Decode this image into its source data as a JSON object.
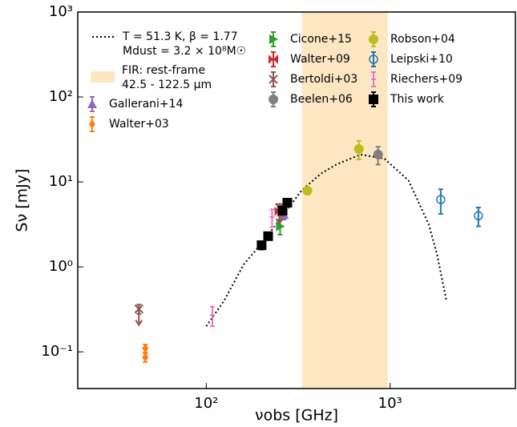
{
  "chart_data": {
    "type": "scatter",
    "x_label": "νobs [GHz]",
    "y_label": "Sν [mJy]",
    "log_x": true,
    "log_y": true,
    "xlim": [
      20,
      4800
    ],
    "ylim": [
      0.037,
      1000
    ],
    "xticks": [
      {
        "value": 100,
        "label": "10²"
      },
      {
        "value": 1000,
        "label": "10³"
      }
    ],
    "yticks": [
      {
        "value": 0.1,
        "label": "10⁻¹"
      },
      {
        "value": 1,
        "label": "10⁰"
      },
      {
        "value": 10,
        "label": "10¹"
      },
      {
        "value": 100,
        "label": "10²"
      },
      {
        "value": 1000,
        "label": "10³"
      }
    ],
    "band": {
      "label_lines": [
        "FIR: rest-frame",
        "42.5 - 122.5 μm"
      ],
      "x_span": [
        331,
        970
      ],
      "color": "#fde7c3"
    },
    "series": [
      {
        "name_lines": [
          "T = 51.3 K, β = 1.77",
          "Mdust = 3.2 × 10⁸M☉"
        ],
        "kind": "line",
        "color": "#000000",
        "x": [
          100,
          125,
          160,
          206,
          260,
          331,
          420,
          509,
          689,
          931,
          1259,
          1622,
          1800,
          2023
        ],
        "y": [
          0.2,
          0.4,
          1.07,
          2.05,
          4,
          8,
          12.5,
          16,
          21,
          18.8,
          10.4,
          3.16,
          1.4,
          0.4
        ]
      },
      {
        "name": "Gallerani+14",
        "marker": "^",
        "color": "#9467bd",
        "x": [
          265
        ],
        "y": [
          4.1
        ],
        "yerr": [
          0.5
        ]
      },
      {
        "name": "Walter+03",
        "marker": "D",
        "color": "#ff7f0e",
        "x": [
          46.6,
          46.6
        ],
        "y": [
          0.11,
          0.086
        ],
        "yerr": [
          0.012,
          0.01
        ]
      },
      {
        "name": "Cicone+15",
        "marker": ">",
        "color": "#2ca02c",
        "x": [
          252
        ],
        "y": [
          3.0
        ],
        "yerr": [
          0.6
        ]
      },
      {
        "name": "Walter+09",
        "marker": "bowtie",
        "color": "#d62728",
        "x": [
          250
        ],
        "y": [
          4.5
        ],
        "yerr": [
          0.5
        ]
      },
      {
        "name": "Bertoldi+03",
        "marker": "x",
        "color": "#8c564b",
        "uplims": true,
        "x": [
          43,
          250
        ],
        "y": [
          0.32,
          5.0
        ],
        "yerr": [
          0.04,
          0.5
        ]
      },
      {
        "name": "Beelen+06",
        "marker": "o",
        "color": "#7f7f7f",
        "x": [
          860
        ],
        "y": [
          21
        ],
        "yerr": [
          5
        ]
      },
      {
        "name": "Robson+04",
        "marker": "o",
        "color": "#bcbd22",
        "x": [
          355,
          676
        ],
        "y": [
          7.9,
          24.4
        ],
        "yerr": [
          0.8,
          6
        ]
      },
      {
        "name": "Leipski+10",
        "marker": "open",
        "color": "#1f77b4",
        "x": [
          1884,
          3020
        ],
        "y": [
          6.2,
          4.0
        ],
        "yerr": [
          2,
          1
        ]
      },
      {
        "name": "Riechers+09",
        "marker": "none",
        "color": "#e377c2",
        "x": [
          108,
          228
        ],
        "y": [
          0.27,
          3.85
        ],
        "yerr": [
          0.07,
          0.9
        ]
      },
      {
        "name": "This work",
        "marker": "s",
        "color": "#000000",
        "x": [
          200,
          217,
          260,
          276
        ],
        "y": [
          1.8,
          2.3,
          4.6,
          5.7
        ],
        "yerr": [
          0.2,
          0.2,
          0.5,
          0.5
        ]
      }
    ]
  }
}
